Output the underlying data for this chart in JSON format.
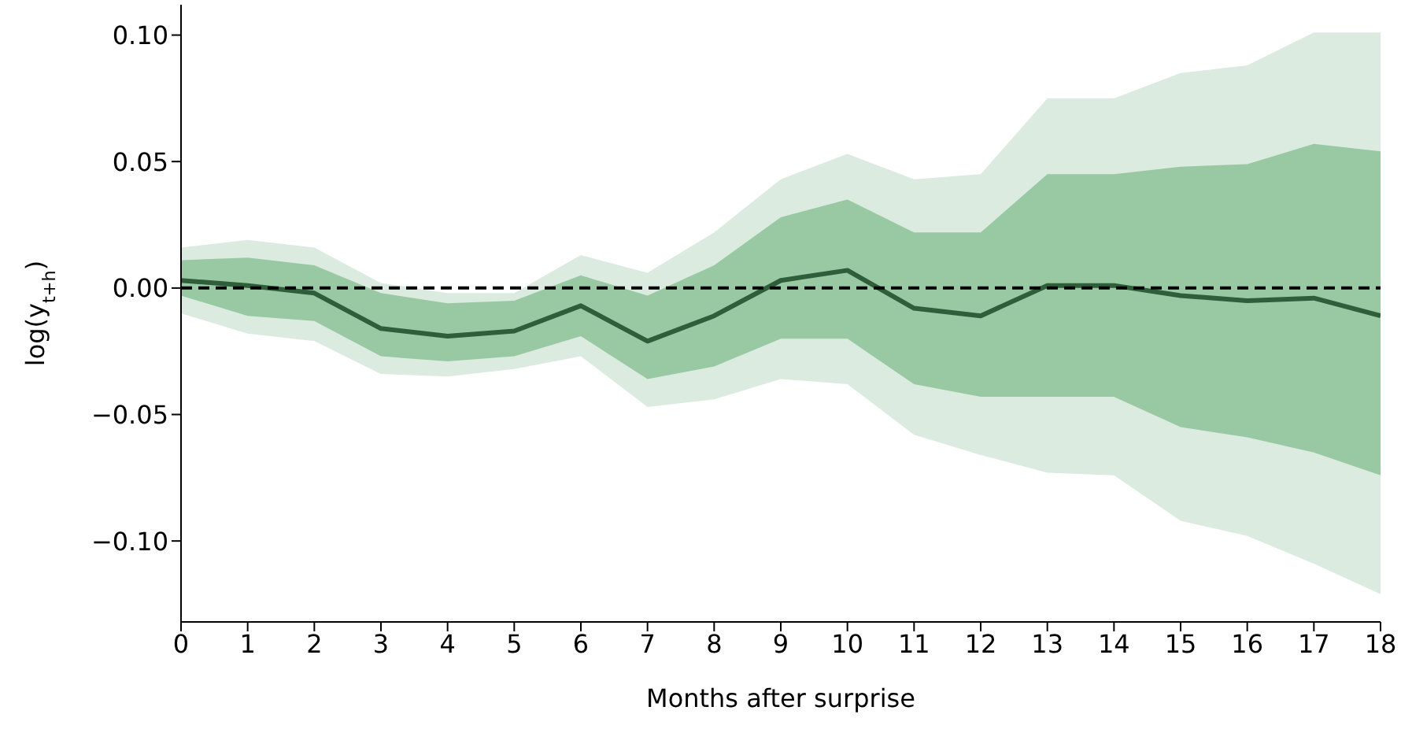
{
  "chart_data": {
    "type": "line",
    "xlabel": "Months after surprise",
    "ylabel": "log(y$_{t+h}$)",
    "x": [
      0,
      1,
      2,
      3,
      4,
      5,
      6,
      7,
      8,
      9,
      10,
      11,
      12,
      13,
      14,
      15,
      16,
      17,
      18
    ],
    "series": [
      {
        "color": "#dbebdf",
        "values": [
          null,
          null,
          null,
          null,
          null,
          null,
          null,
          null,
          null,
          null,
          null,
          null,
          null,
          null,
          null,
          null,
          null,
          null,
          null
        ],
        "lower": [
          -0.01,
          -0.018,
          -0.021,
          -0.034,
          -0.035,
          -0.032,
          -0.027,
          -0.047,
          -0.044,
          -0.036,
          -0.038,
          -0.058,
          -0.066,
          -0.073,
          -0.074,
          -0.092,
          -0.098,
          -0.109,
          -0.121
        ],
        "upper": [
          0.016,
          0.019,
          0.016,
          0.002,
          -0.002,
          -0.002,
          0.013,
          0.006,
          0.022,
          0.043,
          0.053,
          0.043,
          0.045,
          0.075,
          0.075,
          0.085,
          0.088,
          0.101,
          0.101
        ]
      },
      {
        "color": "#99c9a3",
        "values": [
          null,
          null,
          null,
          null,
          null,
          null,
          null,
          null,
          null,
          null,
          null,
          null,
          null,
          null,
          null,
          null,
          null,
          null,
          null
        ],
        "lower": [
          -0.003,
          -0.011,
          -0.013,
          -0.027,
          -0.029,
          -0.027,
          -0.019,
          -0.036,
          -0.031,
          -0.02,
          -0.02,
          -0.038,
          -0.043,
          -0.043,
          -0.043,
          -0.055,
          -0.059,
          -0.065,
          -0.074
        ],
        "upper": [
          0.011,
          0.012,
          0.009,
          -0.002,
          -0.006,
          -0.005,
          0.005,
          -0.003,
          0.009,
          0.028,
          0.035,
          0.022,
          0.022,
          0.045,
          0.045,
          0.048,
          0.049,
          0.057,
          0.054
        ]
      },
      {
        "color": "#2f5e3b",
        "values": [
          0.003,
          0.001,
          -0.002,
          -0.016,
          -0.019,
          -0.017,
          -0.007,
          -0.021,
          -0.011,
          0.003,
          0.007,
          -0.008,
          -0.011,
          0.001,
          0.001,
          -0.003,
          -0.005,
          -0.004,
          -0.011
        ]
      }
    ],
    "xlim": [
      0,
      18
    ],
    "xticks": [
      0,
      1,
      2,
      3,
      4,
      5,
      6,
      7,
      8,
      9,
      10,
      11,
      12,
      13,
      14,
      15,
      16,
      17,
      18
    ],
    "ylim": [
      -0.132,
      0.112
    ],
    "yticks": [
      {
        "value": -0.1,
        "label": "−0.10"
      },
      {
        "value": -0.05,
        "label": "−0.05"
      },
      {
        "value": 0,
        "label": "0.00"
      },
      {
        "value": 0.05,
        "label": "0.05"
      },
      {
        "value": 0.1,
        "label": "0.10"
      }
    ],
    "ref_lines": [
      {
        "axis": "y",
        "value": 0,
        "color": "#000000",
        "line_style": "dashed"
      }
    ],
    "grid": false,
    "legend": false,
    "marker": "none",
    "line_style": "solid"
  }
}
